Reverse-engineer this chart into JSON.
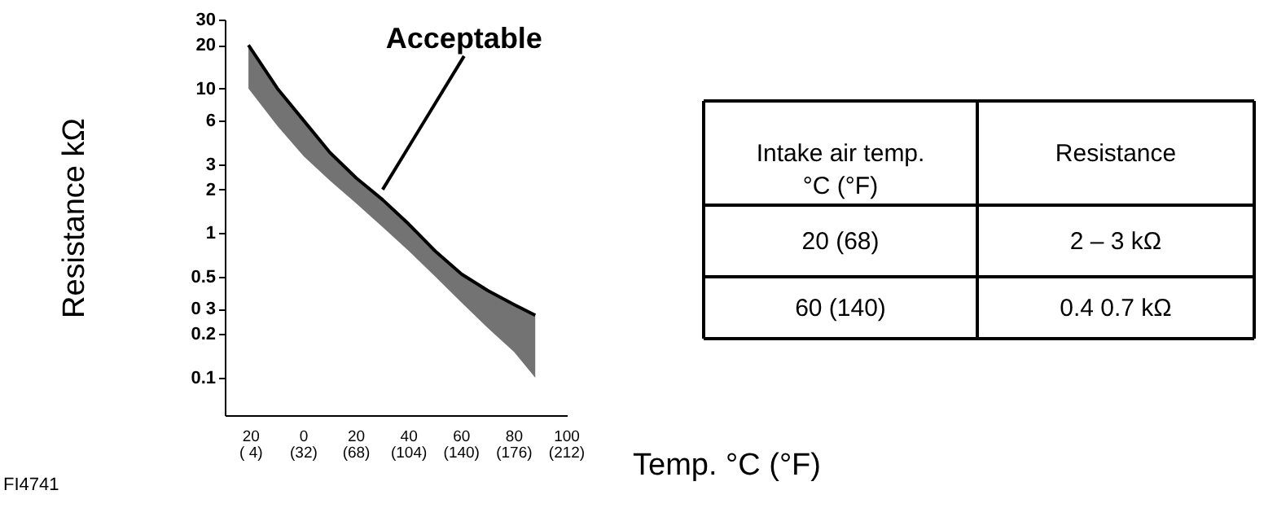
{
  "chart_data": [
    {
      "type": "line",
      "xlabel": "Temp. °C (°F)",
      "ylabel": "Resistance kΩ",
      "log": "y",
      "grid": false,
      "marker": "none",
      "xlim": [
        -30,
        100
      ],
      "xticks": [
        {
          "value": -20,
          "label": "20"
        },
        0,
        20,
        40,
        60,
        80,
        100
      ],
      "x2lim": [
        -22,
        212
      ],
      "x2ticks": [
        {
          "value": -4,
          "label": "( 4)"
        },
        {
          "value": 32,
          "label": "(32)"
        },
        {
          "value": 68,
          "label": "(68)"
        },
        {
          "value": 104,
          "label": "(104)"
        },
        {
          "value": 140,
          "label": "(140)"
        },
        {
          "value": 176,
          "label": "(176)"
        },
        {
          "value": 212,
          "label": "(212)"
        }
      ],
      "ylim": [
        0.055,
        30
      ],
      "yticks": [
        0.1,
        0.2,
        {
          "value": 0.3,
          "label": "0 3"
        },
        0.5,
        1,
        2,
        3,
        6,
        10,
        20,
        30
      ],
      "series": [
        {
          "color": "#000000",
          "x": [
            -21,
            -10,
            0,
            10,
            20,
            30,
            40,
            50,
            60,
            70,
            80,
            88
          ],
          "values": [
            20,
            10,
            6,
            3.6,
            2.4,
            1.7,
            1.15,
            0.75,
            0.52,
            0.4,
            0.32,
            0.27
          ],
          "upper": [
            20,
            10,
            6,
            3.6,
            2.4,
            1.7,
            1.15,
            0.75,
            0.52,
            0.4,
            0.32,
            0.27
          ],
          "lower": [
            10,
            5.5,
            3.4,
            2.3,
            1.6,
            1.1,
            0.75,
            0.5,
            0.33,
            0.22,
            0.15,
            0.1
          ]
        }
      ],
      "annotations": [
        {
          "text": "Acceptable",
          "x": 30,
          "y": 2
        },
        "FI4741"
      ]
    },
    {
      "type": "other",
      "annotations": [
        "Intake air temp.\n°C (°F)",
        "Resistance",
        "20 (68)",
        "2 – 3 kΩ",
        "60 (140)",
        "0.4    0.7 kΩ"
      ]
    }
  ]
}
